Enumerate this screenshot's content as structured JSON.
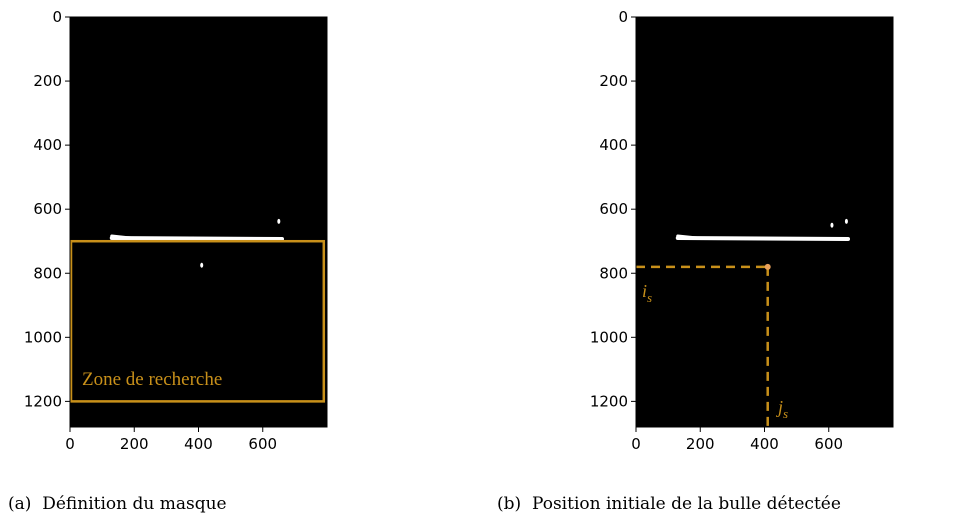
{
  "charts": {
    "a": {
      "caption_label": "(a)",
      "caption_text": "Définition du masque",
      "search_zone_label": "Zone de recherche"
    },
    "b": {
      "caption_label": "(b)",
      "caption_text": "Position initiale de la bulle détectée",
      "i_label": "i",
      "i_sub": "s",
      "j_label": "j",
      "j_sub": "s"
    }
  },
  "colors": {
    "background": "#000000",
    "annotation": "#c8901a",
    "bubble": "#ffffff"
  },
  "chart_data": [
    {
      "type": "image",
      "subplot": "a",
      "title": "",
      "xlabel": "",
      "ylabel": "",
      "xlim": [
        0,
        800
      ],
      "ylim": [
        1280,
        0
      ],
      "x_ticks": [
        "0",
        "200",
        "400",
        "600"
      ],
      "y_ticks": [
        "0",
        "200",
        "400",
        "600",
        "800",
        "1000",
        "1200"
      ],
      "interface_line": {
        "x_start": 130,
        "x_end": 660,
        "y": 690
      },
      "specks": [
        {
          "x": 650,
          "y": 638
        },
        {
          "x": 410,
          "y": 775
        }
      ],
      "search_zone": {
        "x_start": 0,
        "x_end": 790,
        "y_start": 700,
        "y_end": 1200
      },
      "annotations": [
        "Zone de recherche"
      ]
    },
    {
      "type": "image",
      "subplot": "b",
      "title": "",
      "xlabel": "",
      "ylabel": "",
      "xlim": [
        0,
        800
      ],
      "ylim": [
        1280,
        0
      ],
      "x_ticks": [
        "0",
        "200",
        "400",
        "600"
      ],
      "y_ticks": [
        "0",
        "200",
        "400",
        "600",
        "800",
        "1000",
        "1200"
      ],
      "interface_line": {
        "x_start": 130,
        "x_end": 660,
        "y": 690
      },
      "specks": [
        {
          "x": 655,
          "y": 638
        },
        {
          "x": 610,
          "y": 650
        }
      ],
      "detected_bubble": {
        "j_s": 410,
        "i_s": 780
      },
      "annotations": [
        "i_s",
        "j_s"
      ]
    }
  ]
}
